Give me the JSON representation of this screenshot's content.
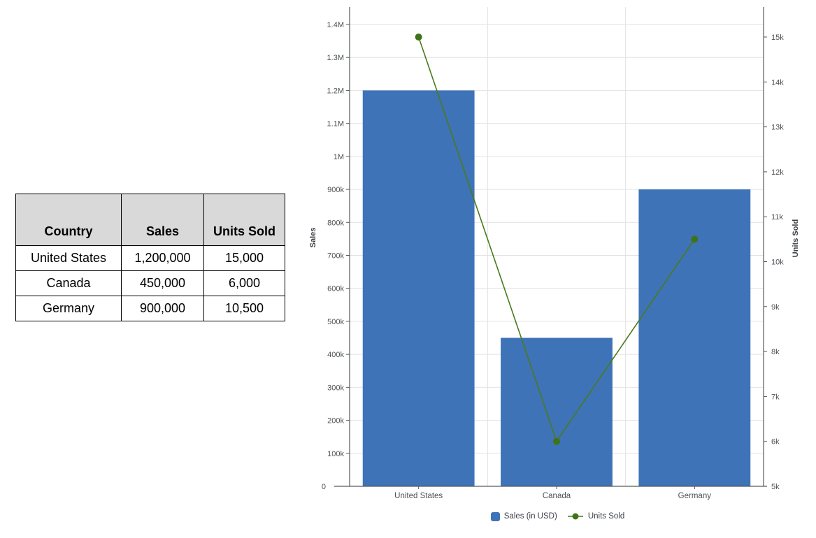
{
  "table": {
    "headers": [
      "Country",
      "Sales",
      "Units Sold"
    ],
    "rows": [
      [
        "United States",
        "1,200,000",
        "15,000"
      ],
      [
        "Canada",
        "450,000",
        "6,000"
      ],
      [
        "Germany",
        "900,000",
        "10,500"
      ]
    ]
  },
  "chart_data": {
    "type": "bar",
    "subtype": "combo-bar-line-dual-axis",
    "categories": [
      "United States",
      "Canada",
      "Germany"
    ],
    "series": [
      {
        "name": "Sales (in USD)",
        "type": "bar",
        "axis": "left",
        "color": "#3e73b8",
        "values": [
          1200000,
          450000,
          900000
        ]
      },
      {
        "name": "Units Sold",
        "type": "line",
        "axis": "right",
        "color": "#4a7a1c",
        "dot_color": "#3f7317",
        "values": [
          15000,
          6000,
          10500
        ]
      }
    ],
    "left_axis": {
      "title": "Sales",
      "min": 0,
      "max": 1400000,
      "tick_step": 100000,
      "tick_labels": [
        "0",
        "100k",
        "200k",
        "300k",
        "400k",
        "500k",
        "600k",
        "700k",
        "800k",
        "900k",
        "1M",
        "1.1M",
        "1.2M",
        "1.3M",
        "1.4M"
      ]
    },
    "right_axis": {
      "title": "Units Sold",
      "min": 5000,
      "max": 15000,
      "tick_step": 1000,
      "tick_labels": [
        "5k",
        "6k",
        "7k",
        "8k",
        "9k",
        "10k",
        "11k",
        "12k",
        "13k",
        "14k",
        "15k"
      ]
    },
    "legend": {
      "position": "bottom",
      "items": [
        "Sales (in USD)",
        "Units Sold"
      ]
    },
    "grid": true,
    "colors": {
      "gridline": "#e2e2e2",
      "axis_line": "#58595b",
      "tick_label": "#4c5156",
      "axis_title": "#3b3e42"
    }
  }
}
